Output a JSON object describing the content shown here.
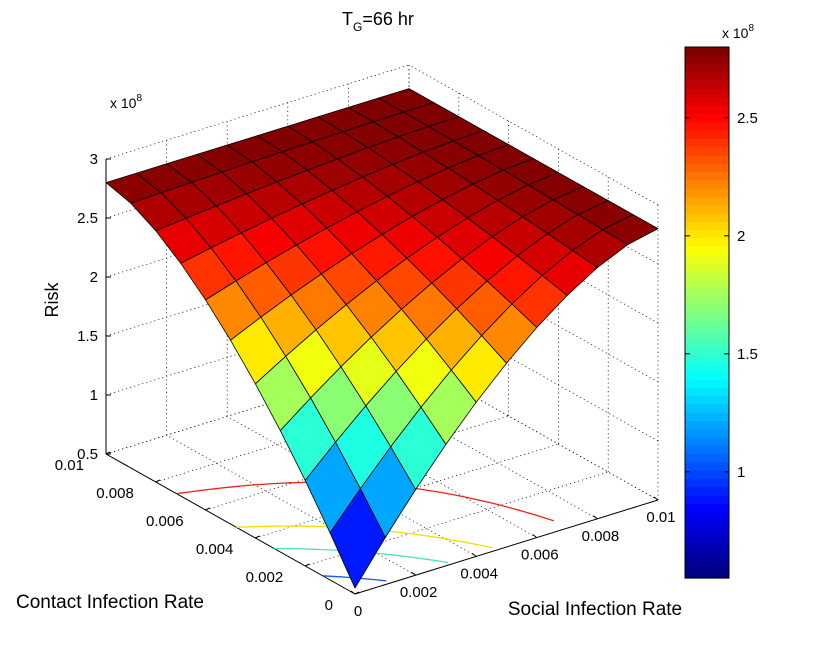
{
  "chart_data": {
    "type": "surface",
    "title": {
      "main": "T",
      "sub": "G",
      "suffix": "=66 hr"
    },
    "xlabel": "Social Infection Rate",
    "ylabel": "Contact Infection Rate",
    "zlabel": "Risk",
    "z_exponent_label": {
      "base": "x 10",
      "exp": "8"
    },
    "x_ticks": [
      "0",
      "0.002",
      "0.004",
      "0.006",
      "0.008",
      "0.01"
    ],
    "y_ticks": [
      "0",
      "0.002",
      "0.004",
      "0.006",
      "0.008",
      "0.01"
    ],
    "z_ticks": [
      "0.5",
      "1",
      "1.5",
      "2",
      "2.5",
      "3"
    ],
    "xlim": [
      0,
      0.01
    ],
    "ylim": [
      0,
      0.01
    ],
    "zlim": [
      0.5,
      3
    ],
    "clim": [
      0.55,
      2.8
    ],
    "grid": true,
    "colormap": "jet",
    "grid_size": 10,
    "x": [
      0,
      0.001,
      0.002,
      0.003,
      0.004,
      0.005,
      0.006,
      0.007,
      0.008,
      0.009,
      0.01
    ],
    "y": [
      0,
      0.001,
      0.002,
      0.003,
      0.004,
      0.005,
      0.006,
      0.007,
      0.008,
      0.009,
      0.01
    ],
    "z_formula": "Risk(1e8) = 0.55 + 2.25*(1 - (1-x/0.01)^1.6*(1-y/0.01)^1.6), approx",
    "contours": [
      {
        "level": 2.5,
        "color": "#e8231a"
      },
      {
        "level": 2.0,
        "color": "#f0e000"
      },
      {
        "level": 1.6,
        "color": "#4ee6a6"
      },
      {
        "level": 1.0,
        "color": "#2255e8"
      }
    ],
    "colorbar": {
      "ticks": [
        "1",
        "1.5",
        "2",
        "2.5"
      ],
      "tick_values": [
        1,
        1.5,
        2,
        2.5
      ],
      "exponent_label": {
        "base": "x 10",
        "exp": "8"
      }
    }
  }
}
